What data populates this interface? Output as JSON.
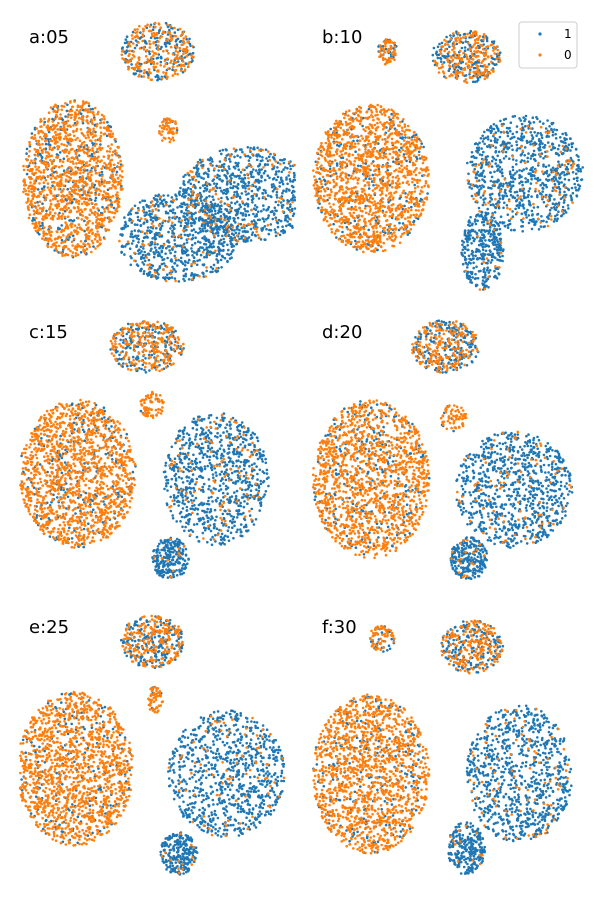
{
  "chart_data": {
    "type": "scatter",
    "legend": {
      "placement": "top-right",
      "entries": [
        {
          "label": "1",
          "color": "#1f77b4"
        },
        {
          "label": "0",
          "color": "#ff7f0e"
        }
      ]
    },
    "axes_visible": false,
    "grid": false,
    "panels": [
      {
        "label": "a:05",
        "clusters": [
          {
            "cx": 0.5,
            "cy": 0.9,
            "rx": 0.14,
            "ry": 0.11,
            "n": 420,
            "orange_frac": 0.55
          },
          {
            "cx": 0.18,
            "cy": 0.42,
            "rx": 0.19,
            "ry": 0.3,
            "n": 1500,
            "orange_frac": 0.82
          },
          {
            "cx": 0.54,
            "cy": 0.6,
            "rx": 0.04,
            "ry": 0.05,
            "n": 60,
            "orange_frac": 0.9
          },
          {
            "cx": 0.83,
            "cy": 0.36,
            "rx": 0.25,
            "ry": 0.18,
            "n": 900,
            "orange_frac": 0.12
          },
          {
            "cx": 0.58,
            "cy": 0.2,
            "rx": 0.23,
            "ry": 0.17,
            "n": 800,
            "orange_frac": 0.1
          }
        ]
      },
      {
        "label": "b:10",
        "clusters": [
          {
            "cx": 0.26,
            "cy": 0.9,
            "rx": 0.04,
            "ry": 0.05,
            "n": 90,
            "orange_frac": 0.7
          },
          {
            "cx": 0.56,
            "cy": 0.88,
            "rx": 0.13,
            "ry": 0.1,
            "n": 400,
            "orange_frac": 0.5
          },
          {
            "cx": 0.2,
            "cy": 0.42,
            "rx": 0.22,
            "ry": 0.28,
            "n": 1600,
            "orange_frac": 0.84
          },
          {
            "cx": 0.78,
            "cy": 0.44,
            "rx": 0.22,
            "ry": 0.22,
            "n": 900,
            "orange_frac": 0.1
          },
          {
            "cx": 0.62,
            "cy": 0.15,
            "rx": 0.08,
            "ry": 0.15,
            "n": 350,
            "orange_frac": 0.05
          }
        ]
      },
      {
        "label": "c:15",
        "clusters": [
          {
            "cx": 0.46,
            "cy": 0.9,
            "rx": 0.14,
            "ry": 0.1,
            "n": 420,
            "orange_frac": 0.55
          },
          {
            "cx": 0.2,
            "cy": 0.42,
            "rx": 0.22,
            "ry": 0.28,
            "n": 1600,
            "orange_frac": 0.84
          },
          {
            "cx": 0.48,
            "cy": 0.68,
            "rx": 0.05,
            "ry": 0.05,
            "n": 70,
            "orange_frac": 0.85
          },
          {
            "cx": 0.72,
            "cy": 0.4,
            "rx": 0.2,
            "ry": 0.25,
            "n": 900,
            "orange_frac": 0.1
          },
          {
            "cx": 0.55,
            "cy": 0.1,
            "rx": 0.07,
            "ry": 0.08,
            "n": 250,
            "orange_frac": 0.05
          }
        ]
      },
      {
        "label": "d:20",
        "clusters": [
          {
            "cx": 0.48,
            "cy": 0.9,
            "rx": 0.13,
            "ry": 0.1,
            "n": 420,
            "orange_frac": 0.55
          },
          {
            "cx": 0.2,
            "cy": 0.4,
            "rx": 0.22,
            "ry": 0.3,
            "n": 1600,
            "orange_frac": 0.84
          },
          {
            "cx": 0.51,
            "cy": 0.63,
            "rx": 0.05,
            "ry": 0.05,
            "n": 70,
            "orange_frac": 0.85
          },
          {
            "cx": 0.74,
            "cy": 0.36,
            "rx": 0.22,
            "ry": 0.22,
            "n": 900,
            "orange_frac": 0.1
          },
          {
            "cx": 0.57,
            "cy": 0.1,
            "rx": 0.07,
            "ry": 0.08,
            "n": 250,
            "orange_frac": 0.05
          }
        ]
      },
      {
        "label": "e:25",
        "clusters": [
          {
            "cx": 0.48,
            "cy": 0.9,
            "rx": 0.12,
            "ry": 0.1,
            "n": 420,
            "orange_frac": 0.55
          },
          {
            "cx": 0.19,
            "cy": 0.42,
            "rx": 0.22,
            "ry": 0.29,
            "n": 1600,
            "orange_frac": 0.86
          },
          {
            "cx": 0.49,
            "cy": 0.68,
            "rx": 0.03,
            "ry": 0.05,
            "n": 60,
            "orange_frac": 0.85
          },
          {
            "cx": 0.76,
            "cy": 0.4,
            "rx": 0.22,
            "ry": 0.24,
            "n": 900,
            "orange_frac": 0.1
          },
          {
            "cx": 0.58,
            "cy": 0.1,
            "rx": 0.07,
            "ry": 0.08,
            "n": 250,
            "orange_frac": 0.05
          }
        ]
      },
      {
        "label": "f:30",
        "clusters": [
          {
            "cx": 0.24,
            "cy": 0.91,
            "rx": 0.05,
            "ry": 0.05,
            "n": 90,
            "orange_frac": 0.7
          },
          {
            "cx": 0.58,
            "cy": 0.88,
            "rx": 0.12,
            "ry": 0.1,
            "n": 400,
            "orange_frac": 0.5
          },
          {
            "cx": 0.2,
            "cy": 0.4,
            "rx": 0.22,
            "ry": 0.3,
            "n": 1600,
            "orange_frac": 0.86
          },
          {
            "cx": 0.76,
            "cy": 0.4,
            "rx": 0.2,
            "ry": 0.26,
            "n": 900,
            "orange_frac": 0.1
          },
          {
            "cx": 0.56,
            "cy": 0.12,
            "rx": 0.07,
            "ry": 0.1,
            "n": 260,
            "orange_frac": 0.05
          }
        ]
      }
    ]
  }
}
